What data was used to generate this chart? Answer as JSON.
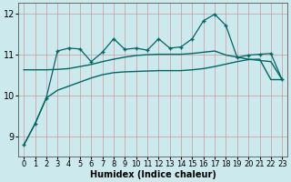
{
  "xlabel": "Humidex (Indice chaleur)",
  "bg_color": "#cce9ee",
  "grid_color": "#aacccc",
  "line_color": "#006666",
  "xlim": [
    -0.5,
    23.5
  ],
  "ylim": [
    8.5,
    12.25
  ],
  "yticks": [
    9,
    10,
    11,
    12
  ],
  "xticks": [
    0,
    1,
    2,
    3,
    4,
    5,
    6,
    7,
    8,
    9,
    10,
    11,
    12,
    13,
    14,
    15,
    16,
    17,
    18,
    19,
    20,
    21,
    22,
    23
  ],
  "jagged_x": [
    0,
    1,
    2,
    3,
    4,
    5,
    6,
    7,
    8,
    9,
    10,
    11,
    12,
    13,
    14,
    15,
    16,
    17,
    18,
    19,
    20,
    21,
    22,
    23
  ],
  "jagged_y": [
    8.78,
    9.3,
    9.93,
    11.08,
    11.15,
    11.13,
    10.82,
    11.05,
    11.38,
    11.12,
    11.15,
    11.1,
    11.38,
    11.15,
    11.18,
    11.38,
    11.82,
    11.98,
    11.7,
    10.92,
    10.98,
    11.0,
    11.02,
    10.38
  ],
  "smooth_upper_x": [
    0,
    1,
    2,
    3,
    4,
    5,
    6,
    7,
    8,
    9,
    10,
    11,
    12,
    13,
    14,
    15,
    16,
    17,
    18,
    19,
    20,
    21,
    22,
    23
  ],
  "smooth_upper_y": [
    10.62,
    10.62,
    10.62,
    10.63,
    10.65,
    10.7,
    10.75,
    10.82,
    10.88,
    10.93,
    10.97,
    10.99,
    11.0,
    11.0,
    11.0,
    11.02,
    11.05,
    11.08,
    10.98,
    10.93,
    10.88,
    10.85,
    10.82,
    10.38
  ],
  "smooth_lower_x": [
    0,
    1,
    2,
    3,
    4,
    5,
    6,
    7,
    8,
    9,
    10,
    11,
    12,
    13,
    14,
    15,
    16,
    17,
    18,
    19,
    20,
    21,
    22,
    23
  ],
  "smooth_lower_y": [
    8.78,
    9.3,
    9.93,
    10.12,
    10.22,
    10.32,
    10.42,
    10.5,
    10.55,
    10.57,
    10.58,
    10.59,
    10.6,
    10.6,
    10.6,
    10.62,
    10.65,
    10.7,
    10.76,
    10.82,
    10.87,
    10.88,
    10.38,
    10.38
  ],
  "xlabel_fontsize": 7,
  "tick_fontsize": 6,
  "ytick_fontsize": 7
}
